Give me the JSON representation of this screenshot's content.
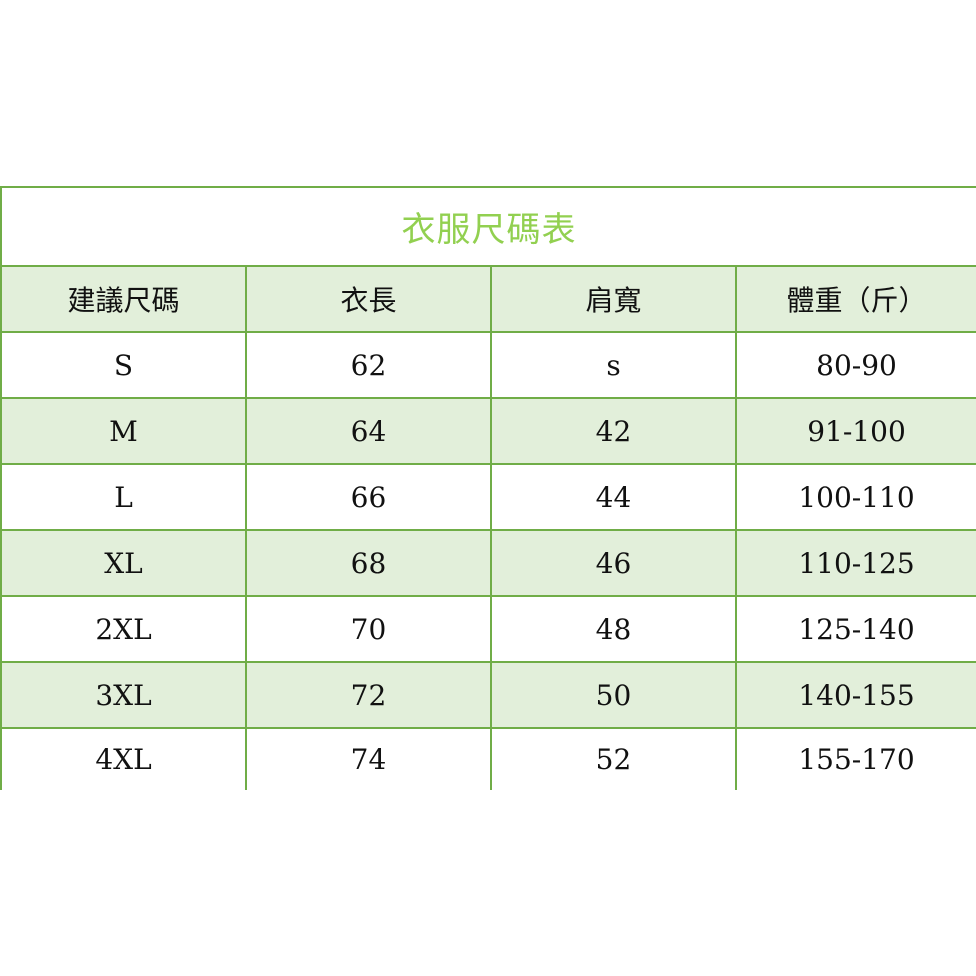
{
  "title": "衣服尺碼表",
  "colors": {
    "border": "#70ad47",
    "title": "#92d050",
    "stripe": "#e2efda"
  },
  "headers": [
    "建議尺碼",
    "衣長",
    "肩寬",
    "體重（斤）"
  ],
  "rows": [
    [
      "S",
      "62",
      "s",
      "80-90"
    ],
    [
      "M",
      "64",
      "42",
      "91-100"
    ],
    [
      "L",
      "66",
      "44",
      "100-110"
    ],
    [
      "XL",
      "68",
      "46",
      "110-125"
    ],
    [
      "2XL",
      "70",
      "48",
      "125-140"
    ],
    [
      "3XL",
      "72",
      "50",
      "140-155"
    ],
    [
      "4XL",
      "74",
      "52",
      "155-170"
    ]
  ]
}
